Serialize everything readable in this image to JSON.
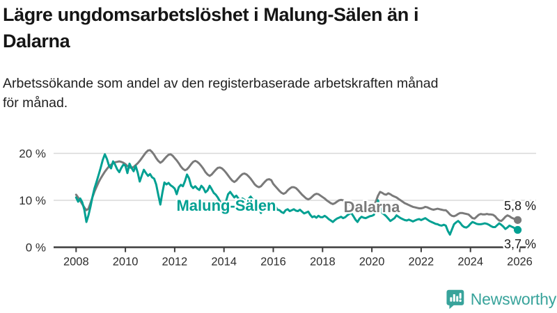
{
  "header": {
    "title_lines": [
      "Lägre ungdomsarbetslöshet i Malung-Sälen än i",
      "Dalarna"
    ],
    "subtitle_lines": [
      "Arbetssökande som andel av den registerbaserade arbetskraften månad",
      "för månad."
    ]
  },
  "footer": {
    "brand": "Newsworthy",
    "logo_icon": "bar-chart-speech-bubble",
    "brand_color": "#38a39b"
  },
  "chart_data": {
    "type": "line",
    "title": "Lägre ungdomsarbetslöshet i Malung-Sälen än i Dalarna",
    "subtitle": "Arbetssökande som andel av den registerbaserade arbetskraften månad för månad.",
    "unit": "%",
    "x_start_year": 2008,
    "x_interval": "monthly",
    "x_end": "2025-12",
    "xticks": [
      2008,
      2010,
      2012,
      2014,
      2016,
      2018,
      2020,
      2022,
      2024,
      2026
    ],
    "yticks": [
      0,
      10,
      20
    ],
    "ytick_labels": [
      "0 %",
      "10 %",
      "20 %"
    ],
    "ylim": [
      0,
      21.5
    ],
    "grid": "horizontal",
    "legend_position": "inline-labels",
    "colors": {
      "grid": "#d8d8d8",
      "axis": "#3c3c3c",
      "tick_text": "#2e2e2e"
    },
    "series": [
      {
        "name": "Dalarna",
        "color": "#7a7a7a",
        "end_label": "5,8 %",
        "end_value": 5.8,
        "values": [
          11.2,
          10.6,
          9.9,
          9.2,
          8.5,
          7.9,
          8.2,
          9.4,
          10.7,
          11.9,
          12.9,
          13.9,
          14.7,
          15.4,
          16.1,
          16.7,
          17.2,
          17.6,
          17.9,
          18.1,
          18.2,
          18.3,
          18.2,
          18.0,
          17.7,
          17.3,
          17.0,
          16.9,
          17.1,
          17.5,
          17.9,
          18.4,
          19.0,
          19.6,
          20.2,
          20.6,
          20.7,
          20.3,
          19.7,
          19.0,
          18.4,
          18.0,
          18.3,
          18.8,
          19.3,
          19.7,
          19.8,
          19.5,
          19.0,
          18.5,
          17.9,
          17.2,
          16.7,
          16.4,
          16.6,
          17.1,
          17.7,
          18.2,
          18.4,
          18.2,
          17.8,
          17.3,
          16.7,
          16.0,
          15.5,
          15.2,
          15.5,
          16.0,
          16.5,
          16.9,
          17.0,
          16.8,
          16.4,
          15.9,
          15.3,
          14.7,
          14.2,
          13.9,
          14.2,
          14.7,
          15.2,
          15.6,
          15.7,
          15.5,
          15.1,
          14.6,
          14.0,
          13.4,
          13.0,
          12.8,
          13.0,
          13.5,
          14.0,
          14.4,
          14.5,
          14.3,
          13.5,
          13.0,
          12.5,
          12.0,
          11.6,
          11.4,
          11.6,
          12.1,
          12.5,
          12.8,
          12.8,
          12.6,
          12.2,
          11.7,
          11.2,
          10.8,
          10.4,
          10.2,
          10.4,
          10.8,
          11.2,
          11.4,
          11.3,
          11.0,
          10.7,
          10.4,
          10.0,
          9.7,
          9.4,
          9.2,
          9.4,
          9.7,
          10.0,
          10.1,
          10.0,
          9.8,
          9.5,
          9.2,
          8.9,
          8.7,
          8.6,
          8.5,
          8.6,
          8.8,
          8.9,
          8.9,
          8.8,
          8.8,
          8.9,
          9.0,
          9.8,
          11.0,
          11.8,
          11.6,
          11.3,
          11.2,
          11.5,
          11.3,
          11.0,
          10.8,
          10.6,
          10.3,
          10.0,
          9.7,
          9.4,
          9.2,
          9.0,
          8.8,
          8.6,
          8.5,
          8.4,
          8.3,
          8.3,
          8.4,
          8.6,
          8.5,
          8.3,
          8.1,
          8.0,
          8.1,
          8.2,
          8.1,
          8.0,
          7.9,
          7.9,
          7.5,
          7.0,
          6.7,
          6.6,
          6.8,
          7.1,
          7.3,
          7.3,
          7.2,
          7.1,
          7.0,
          6.6,
          6.2,
          6.1,
          6.5,
          6.9,
          7.1,
          7.0,
          7.0,
          7.1,
          7.0,
          7.0,
          6.9,
          6.6,
          6.1,
          5.7,
          5.6,
          6.0,
          6.5,
          6.8,
          6.6,
          6.3,
          6.1,
          5.9,
          5.8
        ]
      },
      {
        "name": "Malung-Sälen",
        "color": "#00a092",
        "end_label": "3,7 %",
        "end_value": 3.7,
        "values": [
          10.6,
          9.7,
          10.4,
          9.6,
          8.0,
          5.4,
          6.8,
          8.6,
          10.8,
          12.6,
          14.0,
          15.5,
          17.0,
          18.6,
          19.8,
          18.8,
          17.4,
          16.8,
          18.3,
          17.6,
          16.6,
          16.0,
          16.9,
          17.6,
          17.4,
          15.8,
          17.8,
          16.9,
          16.2,
          17.3,
          15.9,
          14.0,
          15.3,
          16.5,
          15.8,
          15.2,
          15.6,
          14.9,
          14.6,
          13.4,
          11.2,
          9.1,
          11.6,
          13.8,
          13.4,
          13.7,
          13.2,
          12.9,
          12.5,
          11.3,
          12.8,
          13.3,
          13.0,
          14.1,
          15.5,
          14.7,
          13.1,
          12.6,
          13.0,
          12.5,
          12.2,
          13.1,
          12.6,
          11.7,
          12.1,
          13.1,
          12.4,
          11.6,
          11.2,
          10.6,
          9.8,
          8.8,
          8.0,
          9.8,
          11.3,
          11.8,
          11.2,
          10.6,
          11.0,
          10.4,
          10.0,
          10.4,
          10.1,
          9.8,
          10.3,
          10.8,
          10.2,
          9.8,
          9.4,
          8.4,
          7.3,
          8.6,
          9.4,
          9.0,
          8.7,
          8.9,
          8.4,
          8.8,
          8.0,
          7.9,
          7.5,
          7.3,
          7.9,
          8.1,
          7.7,
          7.9,
          8.1,
          7.8,
          7.7,
          8.0,
          7.6,
          7.2,
          7.4,
          7.6,
          6.9,
          6.4,
          6.6,
          6.3,
          6.7,
          6.4,
          6.4,
          6.7,
          6.4,
          6.0,
          5.7,
          5.4,
          5.8,
          6.1,
          6.3,
          6.5,
          6.2,
          6.4,
          6.8,
          7.1,
          7.3,
          6.6,
          5.9,
          5.4,
          6.1,
          6.5,
          6.3,
          6.2,
          6.4,
          6.6,
          6.7,
          6.9,
          8.2,
          10.0,
          8.4,
          7.3,
          7.0,
          6.6,
          6.1,
          5.6,
          5.9,
          6.2,
          6.8,
          6.5,
          6.2,
          6.0,
          5.8,
          5.7,
          5.9,
          5.7,
          5.5,
          5.7,
          5.9,
          6.0,
          5.8,
          6.0,
          6.2,
          5.9,
          5.6,
          5.4,
          5.2,
          5.0,
          4.9,
          4.7,
          4.6,
          4.8,
          4.6,
          3.5,
          2.7,
          3.8,
          4.9,
          5.3,
          5.6,
          5.2,
          4.6,
          4.3,
          4.2,
          4.5,
          5.0,
          5.4,
          5.2,
          5.0,
          4.9,
          4.9,
          5.0,
          5.1,
          5.0,
          4.8,
          4.5,
          4.3,
          4.3,
          4.7,
          5.1,
          4.8,
          4.4,
          3.9,
          4.2,
          4.6,
          4.4,
          4.2,
          3.9,
          3.7
        ]
      }
    ]
  }
}
